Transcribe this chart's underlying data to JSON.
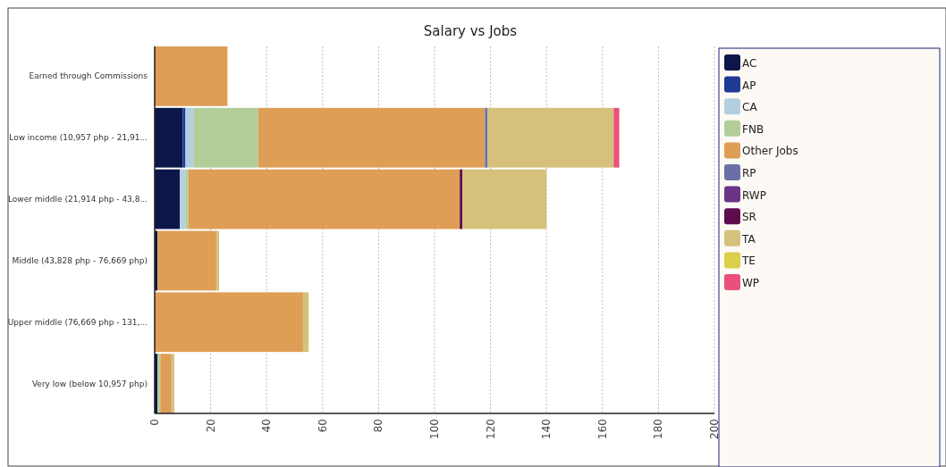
{
  "chart_data": {
    "type": "bar",
    "orientation": "horizontal",
    "stacked": true,
    "title": "Salary vs Jobs",
    "categories": [
      "Earned through Commissions",
      "Low income (10,957 php - 21,91...",
      "Lower middle (21,914 php - 43,8...",
      "Middle (43,828 php - 76,669 php)",
      "Upper middle (76,669 php - 131,...",
      "Very low (below 10,957 php)"
    ],
    "series": [
      {
        "name": "AC",
        "color": "#0c1648",
        "values": [
          null,
          10,
          9,
          1,
          null,
          1
        ]
      },
      {
        "name": "AP",
        "color": "#1f3a93",
        "values": [
          null,
          1,
          null,
          null,
          null,
          null
        ]
      },
      {
        "name": "CA",
        "color": "#b3cfdf",
        "values": [
          null,
          3,
          2,
          null,
          null,
          null
        ]
      },
      {
        "name": "FNB",
        "color": "#b3cd99",
        "values": [
          null,
          23,
          1,
          null,
          null,
          1
        ]
      },
      {
        "name": "Other Jobs",
        "color": "#de9e56",
        "values": [
          26,
          81,
          97,
          21,
          53,
          4
        ]
      },
      {
        "name": "RP",
        "color": "#6b6fa8",
        "values": [
          null,
          1,
          null,
          null,
          null,
          null
        ]
      },
      {
        "name": "RWP",
        "color": "#6b3585",
        "values": [
          null,
          null,
          null,
          null,
          null,
          null
        ]
      },
      {
        "name": "SR",
        "color": "#5e0c4e",
        "values": [
          null,
          null,
          1,
          null,
          null,
          null
        ]
      },
      {
        "name": "TA",
        "color": "#d5c17c",
        "values": [
          null,
          45,
          30,
          1,
          2,
          1
        ]
      },
      {
        "name": "TE",
        "color": "#dccf4a",
        "values": [
          null,
          null,
          null,
          null,
          null,
          null
        ]
      },
      {
        "name": "WP",
        "color": "#e9507a",
        "values": [
          null,
          2,
          null,
          null,
          null,
          null
        ]
      }
    ],
    "xlim": [
      0,
      200
    ],
    "xticks": [
      0,
      20,
      40,
      60,
      80,
      100,
      120,
      140,
      160,
      180,
      200
    ],
    "grid": "x",
    "legend": "right"
  }
}
